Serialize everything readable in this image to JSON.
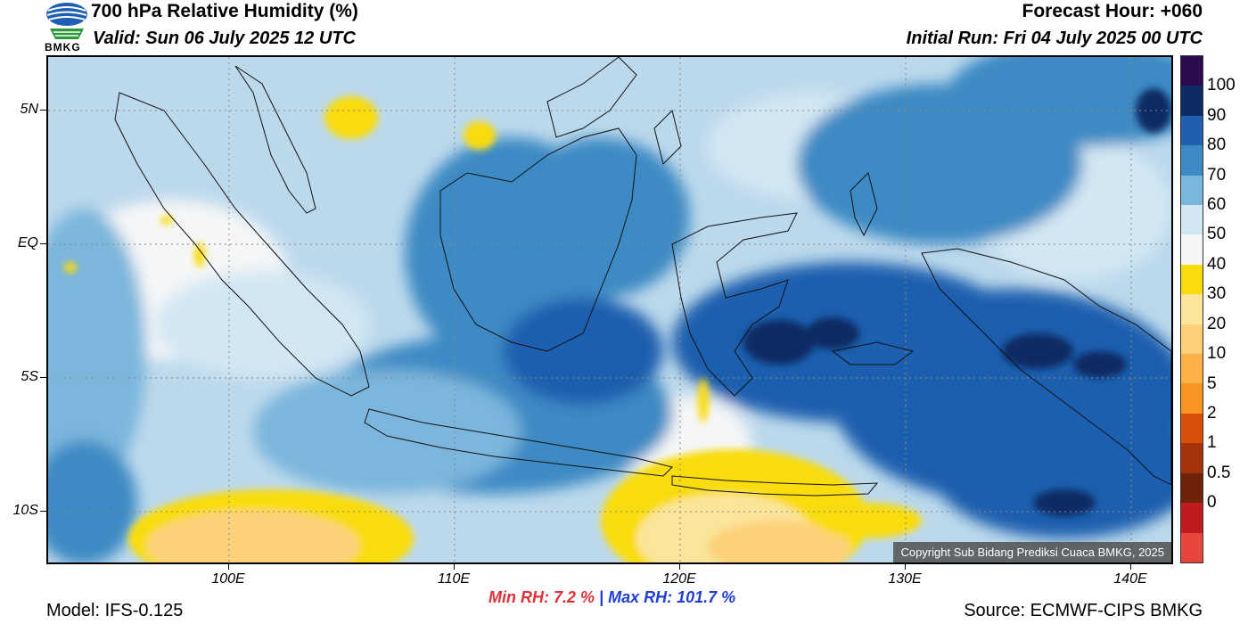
{
  "header": {
    "title": "700 hPa Relative Humidity (%)",
    "valid": "Valid: Sun 06 July 2025 12 UTC",
    "forecast_hour": "Forecast Hour: +060",
    "initial_run": "Initial Run: Fri 04 July 2025 00 UTC"
  },
  "logo": {
    "text": "BMKG",
    "icon": "bmkg-logo-icon"
  },
  "map": {
    "copyright": "Copyright Sub Bidang Prediksi Cuaca BMKG, 2025",
    "lat_labels": [
      "5N",
      "EQ",
      "5S",
      "10S"
    ],
    "lon_labels": [
      "100E",
      "110E",
      "120E",
      "130E",
      "140E"
    ]
  },
  "colorbar": {
    "labels": [
      "100",
      "90",
      "80",
      "70",
      "60",
      "50",
      "40",
      "30",
      "20",
      "10",
      "5",
      "2",
      "1",
      "0.5",
      "0"
    ],
    "colors": [
      "#2a0c4e",
      "#0d2c63",
      "#1f5fae",
      "#3e8ac4",
      "#7bb6dc",
      "#d3e7f3",
      "#f5f6f7",
      "#f9dc0b",
      "#fbe59a",
      "#fcd17a",
      "#fbb148",
      "#f79520",
      "#d9500a",
      "#a43309",
      "#6e220a",
      "#c01c20",
      "#e8453f"
    ]
  },
  "footer": {
    "min_rh": "Min RH:   7.2 %",
    "separator": "|",
    "max_rh": "Max RH: 101.7 %",
    "model": "Model: IFS-0.125",
    "source": "Source: ECMWF-CIPS BMKG"
  }
}
